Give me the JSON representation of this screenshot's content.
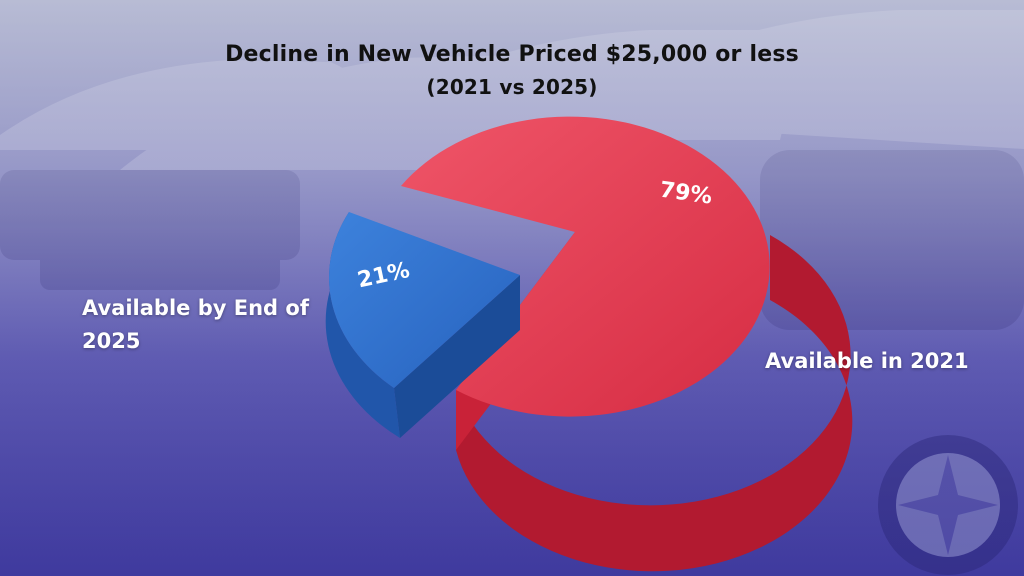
{
  "title_line1": "Decline in New Vehicle Priced $25,000 or less",
  "title_line2": "(2021 vs 2025)",
  "chart_data": {
    "type": "pie",
    "title": "Decline in New Vehicle Priced $25,000 or less (2021 vs 2025)",
    "slices": [
      {
        "label": "Available in 2021",
        "value": 79,
        "value_label": "79%",
        "color": "#e23a4f"
      },
      {
        "label": "Available by End of 2025",
        "value": 21,
        "value_label": "21%",
        "color": "#2f6ecb"
      }
    ],
    "exploded_slice": "Available by End of 2025",
    "style": "3d-pie"
  },
  "labels": {
    "left": "Available by End of 2025",
    "right": "Available in 2021"
  },
  "colors": {
    "red_top": "#e23a4f",
    "red_side": "#b8192e",
    "blue_top": "#2f6ecb",
    "blue_side": "#1d4f9e",
    "background": "#5a56b0"
  }
}
